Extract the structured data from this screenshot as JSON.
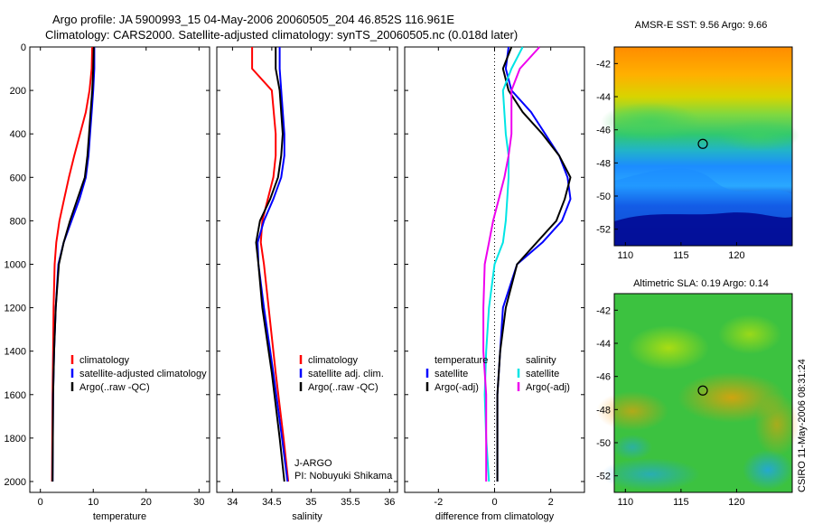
{
  "header": {
    "line1": "Argo profile: JA 5900993_15 04-May-2006 20060505_204 46.852S 116.961E",
    "line2": "Climatology: CARS2000. Satellite-adjusted climatology: synTS_20060505.nc (0.018d later)"
  },
  "side_label": "CSIRO 11-May-2006 08:31:24",
  "credit": {
    "line1": "J-ARGO",
    "line2": "PI: Nobuyuki Shikama"
  },
  "chart_data": [
    {
      "type": "line",
      "id": "temperature",
      "xlabel": "temperature",
      "ylabel": "",
      "xlim": [
        -2,
        32
      ],
      "ylim": [
        0,
        2050
      ],
      "y_reversed": true,
      "xticks": [
        0,
        10,
        20,
        30
      ],
      "yticks": [
        0,
        200,
        400,
        600,
        800,
        1000,
        1200,
        1400,
        1600,
        1800,
        2000
      ],
      "legend": [
        "climatology",
        "satellite-adjusted climatology",
        "Argo(..raw -QC)"
      ],
      "series": [
        {
          "name": "climatology",
          "color": "#ff0000",
          "x": [
            9.8,
            9.7,
            9.3,
            8.6,
            7.5,
            6.4,
            5.4,
            4.5,
            3.6,
            3.0,
            2.7,
            2.5,
            2.4,
            2.3,
            2.2
          ],
          "y": [
            0,
            100,
            200,
            300,
            400,
            500,
            600,
            700,
            800,
            900,
            1000,
            1200,
            1400,
            1600,
            2000
          ]
        },
        {
          "name": "satellite-adjusted climatology",
          "color": "#0000ff",
          "x": [
            10.2,
            10.2,
            10.0,
            9.7,
            9.4,
            9.1,
            8.6,
            7.4,
            5.9,
            4.4,
            3.4,
            2.9,
            2.6,
            2.4,
            2.3
          ],
          "y": [
            0,
            100,
            200,
            300,
            400,
            500,
            600,
            700,
            800,
            900,
            1000,
            1200,
            1400,
            1600,
            2000
          ]
        },
        {
          "name": "Argo(..raw -QC)",
          "color": "#000000",
          "x": [
            10.1,
            10.0,
            9.8,
            9.5,
            9.2,
            8.9,
            8.4,
            7.0,
            5.6,
            4.4,
            3.5,
            2.9,
            2.6,
            2.4,
            2.3
          ],
          "y": [
            0,
            100,
            200,
            300,
            400,
            500,
            600,
            700,
            800,
            900,
            1000,
            1200,
            1400,
            1600,
            2000
          ]
        }
      ]
    },
    {
      "type": "line",
      "id": "salinity",
      "xlabel": "salinity",
      "ylabel": "",
      "xlim": [
        33.8,
        36.1
      ],
      "ylim": [
        0,
        2050
      ],
      "y_reversed": true,
      "xticks": [
        34,
        34.5,
        35,
        35.5,
        36
      ],
      "yticks": [
        0,
        200,
        400,
        600,
        800,
        1000,
        1200,
        1400,
        1600,
        1800,
        2000
      ],
      "legend": [
        "climatology",
        "satellite adj. clim.",
        "Argo(..raw -QC)"
      ],
      "series": [
        {
          "name": "climatology",
          "color": "#ff0000",
          "x": [
            34.25,
            34.25,
            34.5,
            34.55,
            34.55,
            34.52,
            34.45,
            34.38,
            34.36,
            34.4,
            34.46,
            34.55,
            34.65,
            34.71
          ],
          "y": [
            0,
            100,
            200,
            400,
            500,
            600,
            700,
            800,
            900,
            1000,
            1200,
            1500,
            1800,
            2000
          ]
        },
        {
          "name": "satellite adj. clim.",
          "color": "#0000ff",
          "x": [
            34.6,
            34.6,
            34.62,
            34.66,
            34.66,
            34.62,
            34.52,
            34.4,
            34.32,
            34.33,
            34.4,
            34.52,
            34.63,
            34.7
          ],
          "y": [
            0,
            100,
            200,
            400,
            500,
            600,
            700,
            800,
            900,
            1000,
            1200,
            1500,
            1800,
            2000
          ]
        },
        {
          "name": "Argo(..raw -QC)",
          "color": "#000000",
          "x": [
            34.55,
            34.55,
            34.6,
            34.64,
            34.62,
            34.58,
            34.48,
            34.35,
            34.3,
            34.33,
            34.38,
            34.5,
            34.6,
            34.66
          ],
          "y": [
            0,
            100,
            200,
            400,
            500,
            600,
            700,
            800,
            900,
            1000,
            1200,
            1500,
            1800,
            2000
          ]
        }
      ]
    },
    {
      "type": "line",
      "id": "difference",
      "xlabel": "difference from climatology",
      "ylabel": "",
      "xlim": [
        -3.2,
        3.2
      ],
      "ylim": [
        0,
        2050
      ],
      "y_reversed": true,
      "xticks": [
        -2,
        0,
        2
      ],
      "yticks": [
        0,
        200,
        400,
        600,
        800,
        1000,
        1200,
        1400,
        1600,
        1800,
        2000
      ],
      "zero_line": 0,
      "legend_groups": [
        {
          "heading": "temperature",
          "items": [
            "satellite",
            "Argo(-adj)"
          ]
        },
        {
          "heading": "salinity",
          "items": [
            "satellite",
            "Argo(-adj)"
          ]
        }
      ],
      "series": [
        {
          "name": "temperature satellite",
          "color": "#0000ff",
          "x": [
            0.5,
            0.4,
            0.6,
            1.3,
            1.8,
            2.3,
            2.6,
            2.7,
            2.4,
            1.7,
            0.8,
            0.3,
            0.2,
            0.1,
            0.1
          ],
          "y": [
            0,
            100,
            200,
            300,
            400,
            500,
            600,
            700,
            800,
            900,
            1000,
            1200,
            1400,
            1600,
            2000
          ]
        },
        {
          "name": "temperature Argo(-adj)",
          "color": "#000000",
          "x": [
            0.6,
            0.3,
            0.5,
            1.0,
            1.7,
            2.3,
            2.7,
            2.5,
            2.2,
            1.5,
            0.8,
            0.4,
            0.2,
            0.1,
            0.1
          ],
          "y": [
            0,
            100,
            200,
            300,
            400,
            500,
            600,
            700,
            800,
            900,
            1000,
            1200,
            1400,
            1600,
            2000
          ]
        },
        {
          "name": "salinity satellite",
          "color": "#00e5e5",
          "x": [
            1.0,
            0.6,
            0.3,
            0.4,
            0.5,
            0.5,
            0.45,
            0.4,
            0.3,
            0.0,
            -0.2,
            -0.3,
            -0.35,
            -0.3,
            -0.2
          ],
          "y": [
            0,
            100,
            200,
            400,
            500,
            600,
            700,
            800,
            900,
            1000,
            1200,
            1400,
            1600,
            1800,
            2000
          ]
        },
        {
          "name": "salinity Argo(-adj)",
          "color": "#ee00ee",
          "x": [
            1.6,
            0.9,
            0.6,
            0.6,
            0.5,
            0.35,
            0.15,
            -0.05,
            -0.2,
            -0.35,
            -0.4,
            -0.4,
            -0.3,
            -0.3
          ],
          "y": [
            0,
            100,
            200,
            400,
            500,
            600,
            700,
            800,
            900,
            1000,
            1200,
            1400,
            1600,
            2000
          ]
        }
      ]
    },
    {
      "type": "heatmap",
      "id": "sst_map",
      "title": "AMSR-E SST: 9.56 Argo: 9.66",
      "xlim": [
        109,
        125
      ],
      "ylim": [
        -53,
        -41
      ],
      "xticks": [
        110,
        115,
        120
      ],
      "yticks": [
        -42,
        -44,
        -46,
        -48,
        -50,
        -52
      ],
      "marker": {
        "lon": 116.96,
        "lat": -46.85
      }
    },
    {
      "type": "heatmap",
      "id": "sla_map",
      "title": "Altimetric SLA: 0.19 Argo: 0.14",
      "xlim": [
        109,
        125
      ],
      "ylim": [
        -53,
        -41
      ],
      "xticks": [
        110,
        115,
        120
      ],
      "yticks": [
        -42,
        -44,
        -46,
        -48,
        -50,
        -52
      ],
      "marker": {
        "lon": 116.96,
        "lat": -46.85
      }
    }
  ]
}
